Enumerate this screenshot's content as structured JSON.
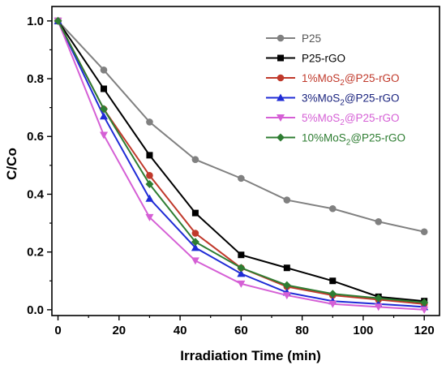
{
  "chart_data": {
    "type": "line",
    "xlabel": "Irradiation Time (min)",
    "ylabel": "C/Co",
    "xlim": [
      -2,
      125
    ],
    "ylim": [
      -0.02,
      1.05
    ],
    "xticks": [
      "0",
      "20",
      "40",
      "60",
      "80",
      "100",
      "120"
    ],
    "yticks": [
      "0.0",
      "0.2",
      "0.4",
      "0.6",
      "0.8",
      "1.0"
    ],
    "x": [
      0,
      15,
      30,
      45,
      60,
      75,
      90,
      105,
      120
    ],
    "grid": false,
    "legend_position": "top-right",
    "series": [
      {
        "name": "P25",
        "label_main": "P25",
        "label_sub": "",
        "label_rest": "",
        "color": "#808080",
        "text_color": "#555555",
        "marker": "circle",
        "values": [
          1.0,
          0.83,
          0.65,
          0.52,
          0.455,
          0.38,
          0.35,
          0.305,
          0.27
        ]
      },
      {
        "name": "P25-rGO",
        "label_main": "P25-rGO",
        "label_sub": "",
        "label_rest": "",
        "color": "#000000",
        "text_color": "#000000",
        "marker": "square",
        "values": [
          1.0,
          0.765,
          0.535,
          0.335,
          0.19,
          0.145,
          0.1,
          0.045,
          0.03
        ]
      },
      {
        "name": "1%MoS2@P25-rGO",
        "label_main": "1%MoS",
        "label_sub": "2",
        "label_rest": "@P25-rGO",
        "color": "#c0392b",
        "text_color": "#c0392b",
        "marker": "circle",
        "values": [
          1.0,
          0.695,
          0.465,
          0.265,
          0.145,
          0.08,
          0.05,
          0.035,
          0.02
        ]
      },
      {
        "name": "3%MoS2@P25-rGO",
        "label_main": "3%MoS",
        "label_sub": "2",
        "label_rest": "@P25-rGO",
        "color": "#1f2bd6",
        "text_color": "#1a237e",
        "marker": "triangle-up",
        "values": [
          1.0,
          0.67,
          0.385,
          0.215,
          0.125,
          0.06,
          0.03,
          0.02,
          0.01
        ]
      },
      {
        "name": "5%MoS2@P25-rGO",
        "label_main": "5%MoS",
        "label_sub": "2",
        "label_rest": "@P25-rGO",
        "color": "#d55fd5",
        "text_color": "#d55fd5",
        "marker": "triangle-down",
        "values": [
          1.0,
          0.605,
          0.32,
          0.17,
          0.09,
          0.05,
          0.02,
          0.01,
          0.0
        ]
      },
      {
        "name": "10%MoS2@P25-rGO",
        "label_main": "10%MoS",
        "label_sub": "2",
        "label_rest": "@P25-rGO",
        "color": "#2e7d32",
        "text_color": "#2e7d32",
        "marker": "diamond",
        "values": [
          1.0,
          0.695,
          0.435,
          0.235,
          0.145,
          0.085,
          0.055,
          0.04,
          0.025
        ]
      }
    ]
  }
}
